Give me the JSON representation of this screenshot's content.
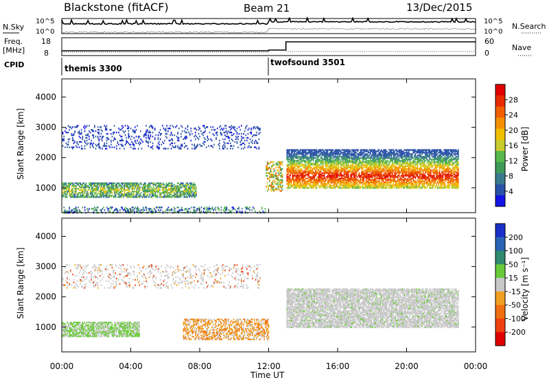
{
  "header": {
    "title": "Blackstone (fitACF)",
    "beam": "Beam 21",
    "date": "13/Dec/2015"
  },
  "strip_labels": {
    "nsky": "N.Sky",
    "nsky_hi": "10^5",
    "nsky_lo": "10^0",
    "nsearch": "N.Search",
    "freq_top": "Freq.",
    "freq_unit": "[MHz]",
    "freq_hi": "18",
    "freq_lo": "8",
    "nave": "Nave",
    "nave_hi": "60",
    "nave_lo": "0",
    "cpid": "CPID"
  },
  "cpid_segments": [
    {
      "label": "themis 3300",
      "start_hour": 0
    },
    {
      "label": "twofsound 3501",
      "start_hour": 12
    }
  ],
  "x_axis": {
    "label": "Time UT",
    "ticks": [
      "00:00",
      "04:00",
      "08:00",
      "12:00",
      "16:00",
      "20:00",
      "00:00"
    ],
    "range_hours": [
      0,
      24
    ]
  },
  "power_panel": {
    "ylabel": "Slant Range [km]",
    "yticks": [
      "1000",
      "2000",
      "3000",
      "4000"
    ],
    "colorbar_label": "Power [dB]",
    "colorbar_ticks": [
      "4",
      "8",
      "12",
      "16",
      "20",
      "24",
      "28"
    ],
    "colors": [
      "#1414e6",
      "#2a52a8",
      "#3a7a8e",
      "#3f9a5a",
      "#58b84c",
      "#c8cc2c",
      "#f0c000",
      "#f49000",
      "#f06000",
      "#e82a00",
      "#e00000"
    ]
  },
  "velocity_panel": {
    "ylabel": "Slant Range [km]",
    "yticks": [
      "1000",
      "2000",
      "3000",
      "4000"
    ],
    "colorbar_label": "Velocity [m s⁻¹]",
    "colorbar_ticks": [
      "200",
      "100",
      "50",
      "15",
      "-15",
      "-50",
      "-100",
      "-200"
    ],
    "colors": [
      "#1a2fc8",
      "#2a64b4",
      "#2f8a6e",
      "#6acb3a",
      "#c8c8c8",
      "#f0a020",
      "#f07010",
      "#f04010",
      "#e00000"
    ]
  },
  "chart_data": [
    {
      "type": "heatmap",
      "title": "Power",
      "x_label": "Time UT",
      "y_label": "Slant Range [km]",
      "x_range_hours": [
        0,
        24
      ],
      "y_range_km": [
        180,
        4600
      ],
      "color_scale": {
        "label": "Power [dB]",
        "range": [
          0,
          30
        ]
      },
      "echo_regions": [
        {
          "time_hours": [
            0,
            7.8
          ],
          "range_km": [
            700,
            1200
          ],
          "power_db": 12
        },
        {
          "time_hours": [
            0,
            11.5
          ],
          "range_km": [
            2300,
            3100
          ],
          "power_db": 4
        },
        {
          "time_hours": [
            0,
            11.8
          ],
          "range_km": [
            180,
            400
          ],
          "power_db": 6
        },
        {
          "time_hours": [
            11.8,
            12.8
          ],
          "range_km": [
            900,
            1900
          ],
          "power_db": 16
        },
        {
          "time_hours": [
            13,
            23
          ],
          "range_km": [
            1000,
            2300
          ],
          "power_db": 20
        }
      ]
    },
    {
      "type": "heatmap",
      "title": "Velocity",
      "x_label": "Time UT",
      "y_label": "Slant Range [km]",
      "x_range_hours": [
        0,
        24
      ],
      "y_range_km": [
        180,
        4600
      ],
      "color_scale": {
        "label": "Velocity [m s⁻¹]",
        "range": [
          -200,
          200
        ]
      },
      "echo_regions": [
        {
          "time_hours": [
            0,
            4.5
          ],
          "range_km": [
            700,
            1200
          ],
          "velocity_ms": 40
        },
        {
          "time_hours": [
            7,
            12
          ],
          "range_km": [
            600,
            1300
          ],
          "velocity_ms": -60
        },
        {
          "time_hours": [
            0,
            11.5
          ],
          "range_km": [
            2300,
            3100
          ],
          "velocity_ms": 0
        },
        {
          "time_hours": [
            13,
            23
          ],
          "range_km": [
            1000,
            2300
          ],
          "velocity_ms": 0
        }
      ]
    }
  ]
}
